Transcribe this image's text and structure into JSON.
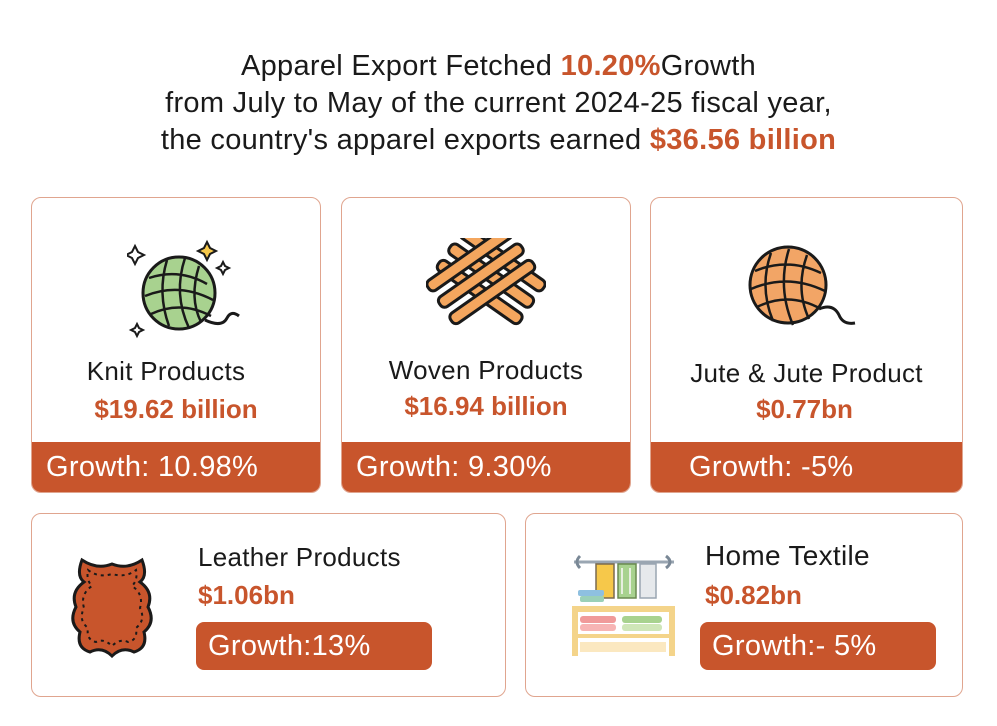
{
  "headline": {
    "line1_a": "Apparel Export Fetched ",
    "line1_highlight": "10.20%",
    "line1_b": "Growth",
    "line2": "from July to May of the current 2024-25 fiscal year,",
    "line3_a": "the country's apparel exports earned ",
    "line3_highlight": "$36.56 billion"
  },
  "cards": {
    "knit": {
      "title": "Knit Products",
      "value": "$19.62 billion",
      "growth": "Growth: 10.98%",
      "icon": "yarn-ball-icon",
      "color": "#a8d28f"
    },
    "woven": {
      "title": "Woven Products",
      "value": "$16.94 billion",
      "growth": "Growth: 9.30%",
      "icon": "woven-fabric-icon",
      "color": "#f4a65e"
    },
    "jute": {
      "title": "Jute & Jute Product",
      "value": "$0.77bn",
      "growth": "Growth: -5%",
      "icon": "jute-ball-icon",
      "color": "#f2a566"
    },
    "leather": {
      "title": "Leather Products",
      "value": "$1.06bn",
      "growth": "Growth:13%",
      "icon": "leather-hide-icon",
      "color": "#c8552c"
    },
    "home": {
      "title": "Home Textile",
      "value": "$0.82bn",
      "growth": "Growth:- 5%",
      "icon": "textile-rack-icon"
    }
  },
  "colors": {
    "accent": "#c8552c",
    "border": "#e0a58f"
  }
}
